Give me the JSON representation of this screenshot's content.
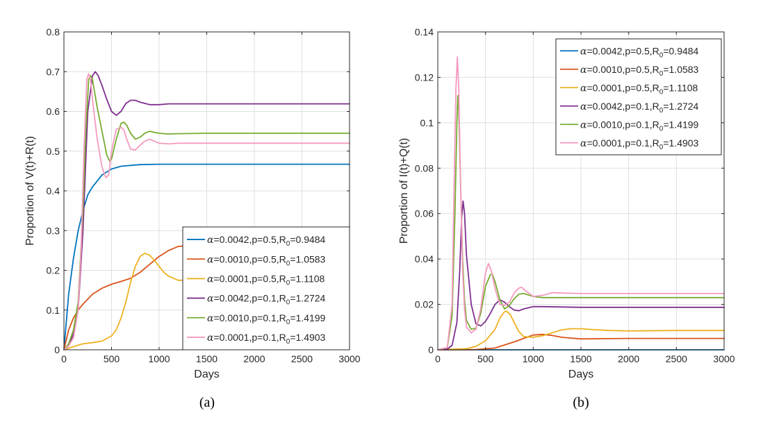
{
  "chart_data": [
    {
      "type": "line",
      "caption": "(a)",
      "xlabel": "Days",
      "ylabel": "Proportion of V(t)+R(t)",
      "xlim": [
        0,
        3000
      ],
      "ylim": [
        0,
        0.8
      ],
      "xticks": [
        0,
        500,
        1000,
        1500,
        2000,
        2500,
        3000
      ],
      "yticks": [
        0,
        0.1,
        0.2,
        0.3,
        0.4,
        0.5,
        0.6,
        0.7,
        0.8
      ],
      "grid": true,
      "legend_position": "bottom-right",
      "series": [
        {
          "alpha": "0.0042",
          "p": "0.5",
          "r0": "0.9484",
          "color": "#0072BD",
          "x": [
            0,
            50,
            100,
            150,
            200,
            250,
            300,
            400,
            500,
            600,
            800,
            1000,
            1500,
            2000,
            3000
          ],
          "y": [
            0,
            0.14,
            0.23,
            0.3,
            0.35,
            0.39,
            0.41,
            0.44,
            0.455,
            0.462,
            0.466,
            0.467,
            0.467,
            0.467,
            0.467
          ]
        },
        {
          "alpha": "0.0010",
          "p": "0.5",
          "r0": "1.0583",
          "color": "#D95319",
          "x": [
            0,
            50,
            100,
            150,
            200,
            300,
            400,
            500,
            600,
            700,
            800,
            900,
            1000,
            1100,
            1200,
            1300,
            1500,
            2000,
            3000
          ],
          "y": [
            0,
            0.05,
            0.08,
            0.1,
            0.115,
            0.14,
            0.155,
            0.165,
            0.172,
            0.18,
            0.195,
            0.215,
            0.235,
            0.25,
            0.26,
            0.262,
            0.26,
            0.255,
            0.25
          ]
        },
        {
          "alpha": "0.0001",
          "p": "0.5",
          "r0": "1.1108",
          "color": "#EDB120",
          "x": [
            0,
            100,
            200,
            300,
            400,
            500,
            550,
            600,
            650,
            700,
            750,
            800,
            850,
            900,
            950,
            1000,
            1050,
            1100,
            1200,
            1300,
            1400,
            1500,
            2000,
            3000
          ],
          "y": [
            0,
            0.008,
            0.015,
            0.018,
            0.022,
            0.035,
            0.05,
            0.08,
            0.12,
            0.17,
            0.21,
            0.235,
            0.243,
            0.238,
            0.225,
            0.21,
            0.195,
            0.185,
            0.175,
            0.175,
            0.18,
            0.185,
            0.19,
            0.192
          ]
        },
        {
          "alpha": "0.0042",
          "p": "0.1",
          "r0": "1.2724",
          "color": "#7E2F8E",
          "x": [
            0,
            50,
            100,
            150,
            200,
            250,
            300,
            330,
            360,
            400,
            450,
            500,
            550,
            600,
            650,
            700,
            750,
            800,
            900,
            1000,
            1100,
            1200,
            1500,
            2000,
            3000
          ],
          "y": [
            0,
            0.01,
            0.04,
            0.1,
            0.3,
            0.6,
            0.69,
            0.7,
            0.69,
            0.665,
            0.63,
            0.6,
            0.59,
            0.6,
            0.62,
            0.628,
            0.628,
            0.623,
            0.617,
            0.617,
            0.619,
            0.619,
            0.619,
            0.619,
            0.619
          ]
        },
        {
          "alpha": "0.0010",
          "p": "0.1",
          "r0": "1.4199",
          "color": "#77AC30",
          "x": [
            0,
            50,
            100,
            150,
            200,
            230,
            260,
            280,
            300,
            350,
            400,
            450,
            480,
            500,
            550,
            600,
            630,
            660,
            700,
            750,
            800,
            850,
            900,
            950,
            1000,
            1100,
            1200,
            1500,
            2000,
            3000
          ],
          "y": [
            0,
            0.015,
            0.05,
            0.12,
            0.35,
            0.55,
            0.68,
            0.69,
            0.68,
            0.61,
            0.55,
            0.49,
            0.475,
            0.48,
            0.53,
            0.57,
            0.573,
            0.565,
            0.545,
            0.53,
            0.535,
            0.545,
            0.55,
            0.547,
            0.545,
            0.543,
            0.544,
            0.545,
            0.545,
            0.545
          ]
        },
        {
          "alpha": "0.0001",
          "p": "0.1",
          "r0": "1.4903",
          "color": "#F49AC1",
          "x": [
            0,
            50,
            100,
            150,
            180,
            210,
            240,
            260,
            280,
            300,
            350,
            400,
            440,
            470,
            500,
            550,
            600,
            630,
            660,
            700,
            750,
            800,
            850,
            900,
            950,
            1000,
            1100,
            1200,
            1500,
            2000,
            3000
          ],
          "y": [
            0,
            0.01,
            0.03,
            0.1,
            0.25,
            0.5,
            0.68,
            0.695,
            0.68,
            0.63,
            0.53,
            0.46,
            0.433,
            0.44,
            0.5,
            0.555,
            0.56,
            0.553,
            0.53,
            0.505,
            0.503,
            0.515,
            0.525,
            0.53,
            0.525,
            0.52,
            0.518,
            0.52,
            0.52,
            0.52,
            0.52
          ]
        }
      ]
    },
    {
      "type": "line",
      "caption": "(b)",
      "xlabel": "Days",
      "ylabel": "Proportion of I(t)+Q(t)",
      "xlim": [
        0,
        3000
      ],
      "ylim": [
        0,
        0.14
      ],
      "xticks": [
        0,
        500,
        1000,
        1500,
        2000,
        2500,
        3000
      ],
      "yticks": [
        0,
        0.02,
        0.04,
        0.06,
        0.08,
        0.1,
        0.12,
        0.14
      ],
      "grid": true,
      "legend_position": "top-right",
      "series": [
        {
          "alpha": "0.0042",
          "p": "0.5",
          "r0": "0.9484",
          "color": "#0072BD",
          "x": [
            0,
            3000
          ],
          "y": [
            0,
            0
          ]
        },
        {
          "alpha": "0.0010",
          "p": "0.5",
          "r0": "1.0583",
          "color": "#D95319",
          "x": [
            0,
            400,
            600,
            800,
            900,
            1000,
            1100,
            1200,
            1300,
            1500,
            2000,
            3000
          ],
          "y": [
            0,
            0.0001,
            0.0008,
            0.0035,
            0.005,
            0.0065,
            0.0068,
            0.0063,
            0.0055,
            0.0048,
            0.005,
            0.005
          ]
        },
        {
          "alpha": "0.0001",
          "p": "0.5",
          "r0": "1.1108",
          "color": "#EDB120",
          "x": [
            0,
            300,
            400,
            500,
            600,
            650,
            700,
            720,
            760,
            800,
            850,
            900,
            1000,
            1100,
            1200,
            1300,
            1400,
            1500,
            1600,
            1800,
            2000,
            2500,
            3000
          ],
          "y": [
            0,
            0.0005,
            0.0015,
            0.004,
            0.009,
            0.014,
            0.0168,
            0.017,
            0.0155,
            0.012,
            0.008,
            0.0058,
            0.0055,
            0.0062,
            0.0075,
            0.0088,
            0.0093,
            0.0093,
            0.009,
            0.0085,
            0.0083,
            0.0085,
            0.0085
          ]
        },
        {
          "alpha": "0.0042",
          "p": "0.1",
          "r0": "1.2724",
          "color": "#7E2F8E",
          "x": [
            0,
            100,
            150,
            200,
            230,
            250,
            265,
            280,
            300,
            350,
            400,
            450,
            500,
            550,
            600,
            650,
            700,
            750,
            800,
            850,
            900,
            1000,
            1100,
            1500,
            2000,
            3000
          ],
          "y": [
            0,
            0.0003,
            0.002,
            0.012,
            0.035,
            0.058,
            0.0655,
            0.06,
            0.042,
            0.02,
            0.0115,
            0.0105,
            0.0125,
            0.016,
            0.02,
            0.022,
            0.021,
            0.019,
            0.0175,
            0.0172,
            0.018,
            0.019,
            0.019,
            0.0187,
            0.0187,
            0.0187
          ]
        },
        {
          "alpha": "0.0010",
          "p": "0.1",
          "r0": "1.4199",
          "color": "#77AC30",
          "x": [
            0,
            100,
            150,
            180,
            200,
            210,
            220,
            240,
            260,
            280,
            300,
            350,
            400,
            450,
            500,
            550,
            570,
            600,
            650,
            700,
            750,
            800,
            850,
            900,
            1000,
            1100,
            1200,
            1500,
            2000,
            3000
          ],
          "y": [
            0,
            0.001,
            0.015,
            0.06,
            0.1,
            0.112,
            0.105,
            0.07,
            0.04,
            0.022,
            0.013,
            0.009,
            0.0095,
            0.016,
            0.028,
            0.033,
            0.0335,
            0.03,
            0.022,
            0.018,
            0.0195,
            0.0225,
            0.0245,
            0.0248,
            0.0235,
            0.023,
            0.023,
            0.023,
            0.023,
            0.023
          ]
        },
        {
          "alpha": "0.0001",
          "p": "0.1",
          "r0": "1.4903",
          "color": "#F49AC1",
          "x": [
            0,
            100,
            150,
            170,
            190,
            205,
            220,
            240,
            260,
            280,
            300,
            350,
            400,
            450,
            500,
            530,
            560,
            600,
            650,
            700,
            750,
            800,
            850,
            880,
            920,
            1000,
            1100,
            1200,
            1300,
            1500,
            2000,
            3000
          ],
          "y": [
            0,
            0.001,
            0.02,
            0.07,
            0.115,
            0.129,
            0.115,
            0.07,
            0.035,
            0.018,
            0.01,
            0.0075,
            0.009,
            0.018,
            0.034,
            0.038,
            0.035,
            0.027,
            0.02,
            0.0195,
            0.021,
            0.025,
            0.0272,
            0.0275,
            0.026,
            0.0235,
            0.024,
            0.0252,
            0.025,
            0.0248,
            0.0248,
            0.0248
          ]
        }
      ]
    }
  ]
}
